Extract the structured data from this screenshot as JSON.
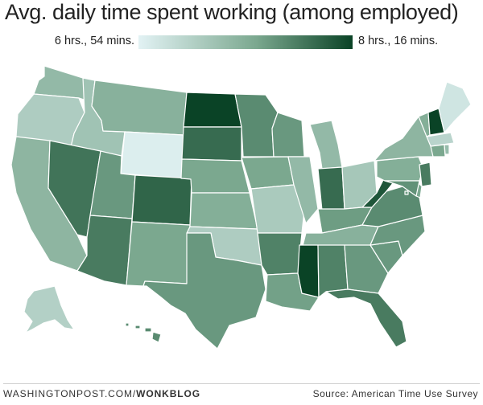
{
  "title": "Avg. daily time spent working (among employed)",
  "legend": {
    "min_label": "6 hrs., 54 mins.",
    "max_label": "8 hrs., 16 mins.",
    "min_color": "#e2f2f4",
    "mid_color": "#7ba88f",
    "max_color": "#0a4326"
  },
  "footer": {
    "site": "WASHINGTONPOST.COM/",
    "section": "WONKBLOG",
    "source": "Source: American Time Use Survey"
  },
  "chart_data": {
    "type": "choropleth",
    "region": "United States",
    "value_range": [
      "6 hrs., 54 mins.",
      "8 hrs., 16 mins."
    ],
    "value_scale": "0 = 6 hrs., 54 mins., 1 = 8 hrs., 16 mins. (estimated relative shade)",
    "states": [
      {
        "id": "WA",
        "value": 0.42
      },
      {
        "id": "OR",
        "value": 0.28
      },
      {
        "id": "CA",
        "value": 0.45
      },
      {
        "id": "ID",
        "value": 0.35
      },
      {
        "id": "NV",
        "value": 0.78
      },
      {
        "id": "MT",
        "value": 0.48
      },
      {
        "id": "WY",
        "value": 0.03
      },
      {
        "id": "UT",
        "value": 0.62
      },
      {
        "id": "AZ",
        "value": 0.75
      },
      {
        "id": "CO",
        "value": 0.85
      },
      {
        "id": "NM",
        "value": 0.55
      },
      {
        "id": "ND",
        "value": 1.0
      },
      {
        "id": "SD",
        "value": 0.82
      },
      {
        "id": "NE",
        "value": 0.55
      },
      {
        "id": "KS",
        "value": 0.5
      },
      {
        "id": "OK",
        "value": 0.28
      },
      {
        "id": "TX",
        "value": 0.62
      },
      {
        "id": "MN",
        "value": 0.68
      },
      {
        "id": "IA",
        "value": 0.55
      },
      {
        "id": "MO",
        "value": 0.3
      },
      {
        "id": "AR",
        "value": 0.72
      },
      {
        "id": "LA",
        "value": 0.58
      },
      {
        "id": "WI",
        "value": 0.62
      },
      {
        "id": "IL",
        "value": 0.42
      },
      {
        "id": "MI",
        "value": 0.42
      },
      {
        "id": "IN",
        "value": 0.82
      },
      {
        "id": "OH",
        "value": 0.32
      },
      {
        "id": "KY",
        "value": 0.6
      },
      {
        "id": "TN",
        "value": 0.48
      },
      {
        "id": "MS",
        "value": 1.0
      },
      {
        "id": "AL",
        "value": 0.72
      },
      {
        "id": "GA",
        "value": 0.62
      },
      {
        "id": "FL",
        "value": 0.75
      },
      {
        "id": "SC",
        "value": 0.62
      },
      {
        "id": "NC",
        "value": 0.62
      },
      {
        "id": "VA",
        "value": 0.68
      },
      {
        "id": "WV",
        "value": 0.92
      },
      {
        "id": "PA",
        "value": 0.5
      },
      {
        "id": "NY",
        "value": 0.45
      },
      {
        "id": "VT",
        "value": 0.5
      },
      {
        "id": "NH",
        "value": 1.0
      },
      {
        "id": "ME",
        "value": 0.1
      },
      {
        "id": "MA",
        "value": 0.22
      },
      {
        "id": "CT",
        "value": 0.55
      },
      {
        "id": "RI",
        "value": 0.4
      },
      {
        "id": "NJ",
        "value": 0.75
      },
      {
        "id": "DE",
        "value": 0.55
      },
      {
        "id": "MD",
        "value": 0.65
      },
      {
        "id": "DC",
        "value": 0.6
      },
      {
        "id": "AK",
        "value": 0.25
      },
      {
        "id": "HI",
        "value": 0.68
      }
    ]
  }
}
